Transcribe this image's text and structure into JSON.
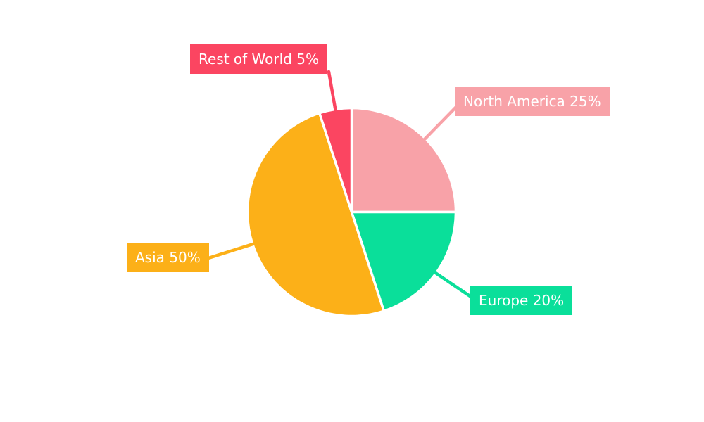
{
  "page": {
    "background_color": "#ffffff"
  },
  "chart_data": {
    "type": "pie",
    "title": "",
    "labels": [
      "North America",
      "Europe",
      "Asia",
      "Rest of World"
    ],
    "values": [
      25,
      20,
      50,
      5
    ],
    "unit": "%",
    "colors": [
      "#F8A2A8",
      "#0ADF9A",
      "#FCB018",
      "#FB4561"
    ],
    "callouts": [
      {
        "text": "North America 25%"
      },
      {
        "text": "Europe 20%"
      },
      {
        "text": "Asia 50%"
      },
      {
        "text": "Rest of World 5%"
      }
    ],
    "start_angle_deg": 0,
    "direction": "clockwise",
    "slice_border_color": "#ffffff",
    "label_text_color": "#ffffff",
    "legend": "none"
  }
}
